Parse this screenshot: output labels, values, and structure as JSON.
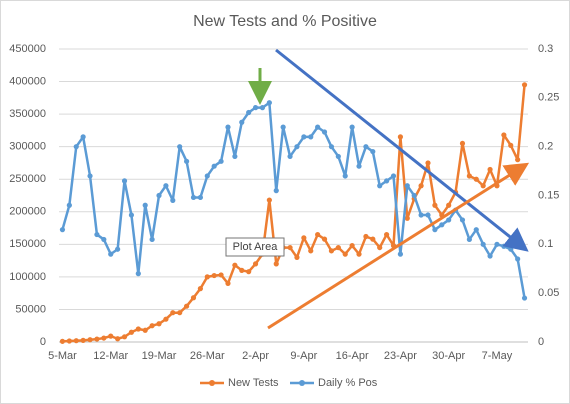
{
  "chart_data": {
    "type": "line",
    "title": "New Tests and % Positive",
    "categories": [
      "5-Mar",
      null,
      null,
      null,
      null,
      null,
      null,
      "12-Mar",
      null,
      null,
      null,
      null,
      null,
      null,
      "19-Mar",
      null,
      null,
      null,
      null,
      null,
      null,
      "26-Mar",
      null,
      null,
      null,
      null,
      null,
      null,
      "2-Apr",
      null,
      null,
      null,
      null,
      null,
      null,
      "9-Apr",
      null,
      null,
      null,
      null,
      null,
      null,
      "16-Apr",
      null,
      null,
      null,
      null,
      null,
      null,
      "23-Apr",
      null,
      null,
      null,
      null,
      null,
      null,
      "30-Apr",
      null,
      null,
      null,
      null,
      null,
      null,
      "7-May",
      null,
      null,
      null,
      null
    ],
    "series": [
      {
        "name": "New Tests",
        "color": "#ED7D31",
        "values": [
          1000,
          1500,
          2000,
          2500,
          3500,
          4500,
          6000,
          9000,
          5000,
          8000,
          15000,
          20000,
          18000,
          25000,
          28000,
          35000,
          45000,
          45000,
          55000,
          68000,
          82000,
          100000,
          102000,
          103000,
          90000,
          118000,
          110000,
          108000,
          120000,
          135000,
          218000,
          120000,
          145000,
          145000,
          130000,
          160000,
          140000,
          165000,
          158000,
          140000,
          145000,
          135000,
          148000,
          135000,
          162000,
          158000,
          145000,
          165000,
          148000,
          315000,
          190000,
          220000,
          240000,
          275000,
          210000,
          195000,
          210000,
          230000,
          305000,
          255000,
          250000,
          240000,
          265000,
          240000,
          318000,
          302000,
          280000,
          395000
        ]
      },
      {
        "name": "Daily % Pos",
        "color": "#5B9BD5",
        "axis": "y2",
        "values": [
          0.115,
          0.14,
          0.2,
          0.21,
          0.17,
          0.11,
          0.105,
          0.09,
          0.095,
          0.165,
          0.13,
          0.07,
          0.14,
          0.105,
          0.15,
          0.16,
          0.145,
          0.2,
          0.185,
          0.148,
          0.148,
          0.17,
          0.18,
          0.185,
          0.22,
          0.19,
          0.225,
          0.235,
          0.24,
          0.24,
          0.245,
          0.155,
          0.22,
          0.19,
          0.2,
          0.21,
          0.21,
          0.22,
          0.215,
          0.2,
          0.19,
          0.17,
          0.22,
          0.18,
          0.2,
          0.195,
          0.16,
          0.165,
          0.17,
          0.09,
          0.16,
          0.15,
          0.13,
          0.13,
          0.115,
          0.12,
          0.125,
          0.135,
          0.125,
          0.105,
          0.115,
          0.1,
          0.088,
          0.1,
          0.098,
          0.095,
          0.085,
          0.045
        ]
      }
    ],
    "ylim": [
      0,
      450000
    ],
    "yticks": [
      0,
      50000,
      100000,
      150000,
      200000,
      250000,
      300000,
      350000,
      400000,
      450000
    ],
    "y2lim": [
      0,
      0.3
    ],
    "y2ticks": [
      0,
      0.05,
      0.1,
      0.15,
      0.2,
      0.25,
      0.3
    ],
    "grid": true,
    "legend": "bottom",
    "annotation": "Plot Area"
  }
}
